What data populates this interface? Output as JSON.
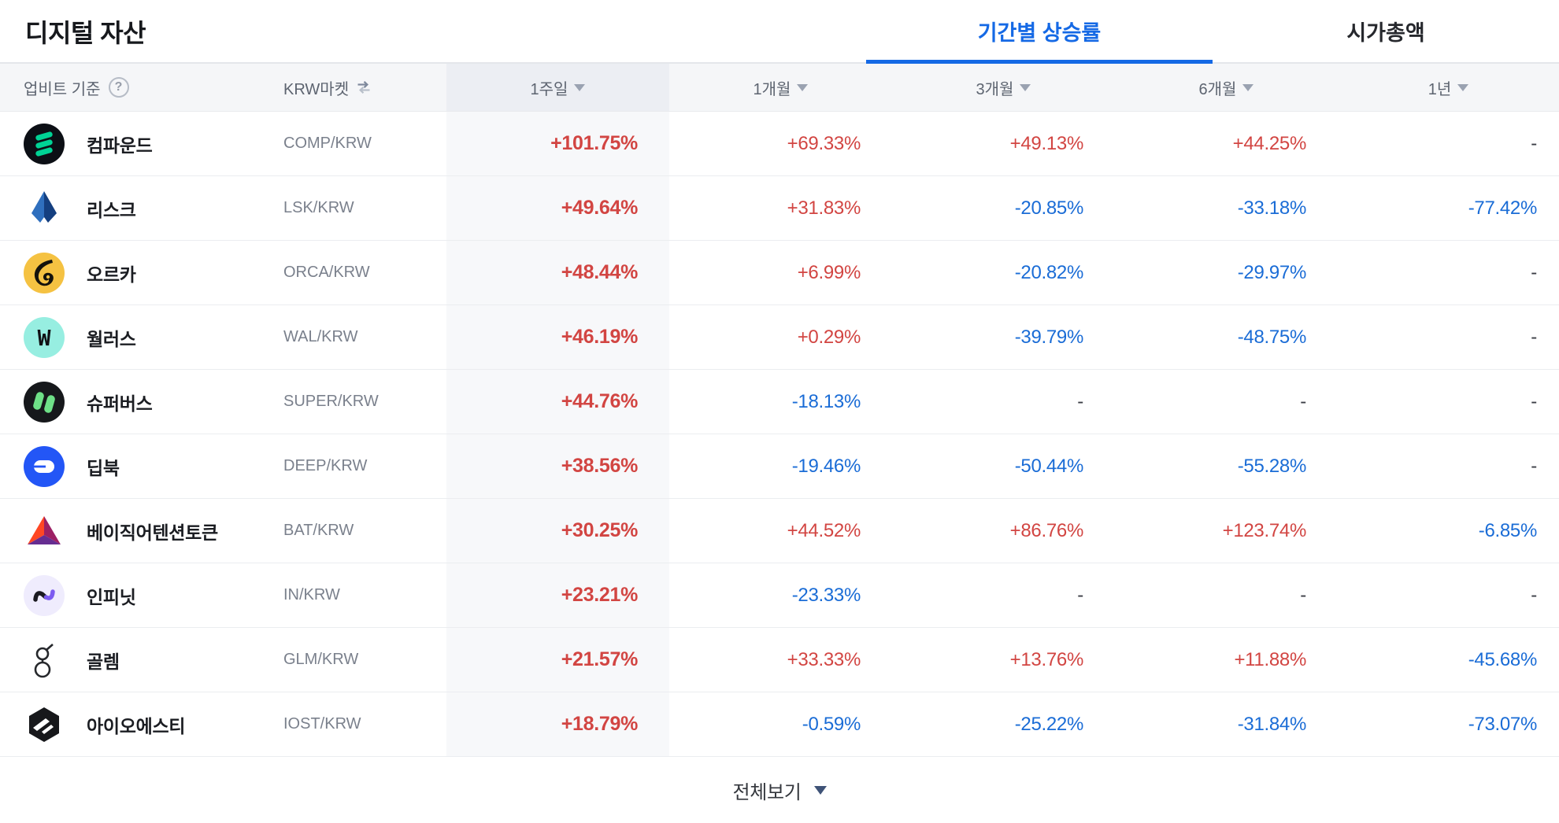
{
  "page": {
    "title": "디지털 자산"
  },
  "tabs": [
    {
      "label": "기간별 상승률",
      "active": true
    },
    {
      "label": "시가총액",
      "active": false
    }
  ],
  "table": {
    "header": {
      "basis_label": "업비트 기준",
      "help_icon": "question-circle-icon",
      "market_label": "KRW마켓",
      "sort_icon": "swap-arrows-icon",
      "period_columns": [
        "1주일",
        "1개월",
        "3개월",
        "6개월",
        "1년"
      ]
    },
    "rows": [
      {
        "icon": "compound",
        "name": "컴파운드",
        "pair": "COMP/KRW",
        "values": [
          "+101.75%",
          "+69.33%",
          "+49.13%",
          "+44.25%",
          "-"
        ]
      },
      {
        "icon": "lisk",
        "name": "리스크",
        "pair": "LSK/KRW",
        "values": [
          "+49.64%",
          "+31.83%",
          "-20.85%",
          "-33.18%",
          "-77.42%"
        ]
      },
      {
        "icon": "orca",
        "name": "오르카",
        "pair": "ORCA/KRW",
        "values": [
          "+48.44%",
          "+6.99%",
          "-20.82%",
          "-29.97%",
          "-"
        ]
      },
      {
        "icon": "walrus",
        "name": "월러스",
        "pair": "WAL/KRW",
        "values": [
          "+46.19%",
          "+0.29%",
          "-39.79%",
          "-48.75%",
          "-"
        ]
      },
      {
        "icon": "superverse",
        "name": "슈퍼버스",
        "pair": "SUPER/KRW",
        "values": [
          "+44.76%",
          "-18.13%",
          "-",
          "-",
          "-"
        ]
      },
      {
        "icon": "deepbook",
        "name": "딥북",
        "pair": "DEEP/KRW",
        "values": [
          "+38.56%",
          "-19.46%",
          "-50.44%",
          "-55.28%",
          "-"
        ]
      },
      {
        "icon": "bat",
        "name": "베이직어텐션토큰",
        "pair": "BAT/KRW",
        "values": [
          "+30.25%",
          "+44.52%",
          "+86.76%",
          "+123.74%",
          "-6.85%"
        ]
      },
      {
        "icon": "infinit",
        "name": "인피닛",
        "pair": "IN/KRW",
        "values": [
          "+23.21%",
          "-23.33%",
          "-",
          "-",
          "-"
        ]
      },
      {
        "icon": "golem",
        "name": "골렘",
        "pair": "GLM/KRW",
        "values": [
          "+21.57%",
          "+33.33%",
          "+13.76%",
          "+11.88%",
          "-45.68%"
        ]
      },
      {
        "icon": "iost",
        "name": "아이오에스티",
        "pair": "IOST/KRW",
        "values": [
          "+18.79%",
          "-0.59%",
          "-25.22%",
          "-31.84%",
          "-73.07%"
        ]
      }
    ]
  },
  "footer": {
    "label": "전체보기"
  },
  "colors": {
    "up": "#d24542",
    "down": "#1a6cd6",
    "accent": "#1569e5"
  }
}
